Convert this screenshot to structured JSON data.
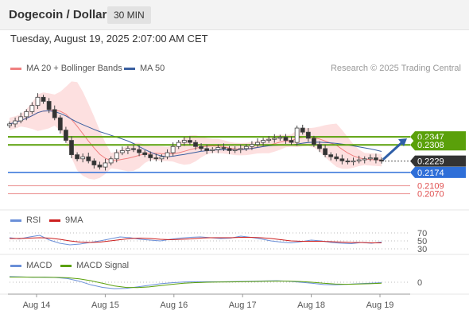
{
  "header": {
    "title": "Dogecoin / Dollar",
    "timeframe": "30 MIN"
  },
  "datetime": "Tuesday, August 19, 2025 2:07:00 AM CET",
  "legend": {
    "ma20": "MA 20 + Bollinger Bands",
    "ma50": "MA 50",
    "credit": "Research © 2025 Trading Central",
    "rsi": "RSI",
    "rsi9ma": "9MA",
    "macd": "MACD",
    "macd_signal": "MACD Signal"
  },
  "colors": {
    "ma20": "#f08080",
    "ma50": "#3a5fa0",
    "bollinger_fill": "#fde0e0",
    "resistance": "#5aa00a",
    "support": "#2f6fd8",
    "target": "#e05050",
    "rsi": "#6a8fd8",
    "rsi9ma": "#cc1f1f",
    "macd": "#6a8fd8",
    "macd_signal": "#5aa00a"
  },
  "chart_data": [
    {
      "type": "candlestick",
      "x_labels": [
        "Aug 14",
        "Aug 15",
        "Aug 16",
        "Aug 17",
        "Aug 18",
        "Aug 19"
      ],
      "ylim": [
        0.203,
        0.258
      ],
      "close": [
        0.241,
        0.2425,
        0.2445,
        0.247,
        0.25,
        0.254,
        0.252,
        0.248,
        0.244,
        0.238,
        0.233,
        0.226,
        0.224,
        0.225,
        0.223,
        0.221,
        0.22,
        0.222,
        0.224,
        0.227,
        0.228,
        0.229,
        0.2285,
        0.227,
        0.226,
        0.2245,
        0.224,
        0.225,
        0.227,
        0.23,
        0.232,
        0.233,
        0.232,
        0.23,
        0.229,
        0.228,
        0.2285,
        0.2295,
        0.229,
        0.228,
        0.2285,
        0.229,
        0.23,
        0.231,
        0.232,
        0.233,
        0.2335,
        0.234,
        0.2345,
        0.233,
        0.232,
        0.239,
        0.237,
        0.234,
        0.231,
        0.229,
        0.226,
        0.225,
        0.224,
        0.223,
        0.2225,
        0.223,
        0.2235,
        0.224,
        0.2245,
        0.2235,
        0.2229
      ],
      "resistance": [
        0.2347,
        0.2308
      ],
      "support": [
        0.2174
      ],
      "targets": [
        0.2109,
        0.207
      ],
      "price_labels": [
        "0.2347",
        "0.2308",
        "0.2229",
        "0.2174",
        "0.2109",
        "0.2070"
      ]
    },
    {
      "type": "line",
      "name": "RSI",
      "levels": [
        "70",
        "50",
        "30"
      ],
      "ylim": [
        20,
        80
      ],
      "series": [
        {
          "name": "RSI",
          "values": [
            58,
            55,
            60,
            64,
            52,
            44,
            40,
            42,
            46,
            50,
            55,
            60,
            58,
            54,
            52,
            50,
            54,
            57,
            59,
            60,
            58,
            56,
            57,
            62,
            59,
            55,
            50,
            47,
            45,
            48,
            52,
            50,
            46,
            44,
            43,
            46,
            44,
            47
          ]
        },
        {
          "name": "9MA",
          "values": [
            56,
            56,
            57,
            58,
            57,
            54,
            50,
            47,
            46,
            47,
            50,
            53,
            56,
            57,
            56,
            54,
            53,
            54,
            55,
            57,
            58,
            58,
            58,
            59,
            59,
            58,
            56,
            53,
            50,
            49,
            49,
            49,
            48,
            47,
            46,
            46,
            45,
            45
          ]
        }
      ]
    },
    {
      "type": "line",
      "name": "MACD",
      "levels": [
        "0"
      ],
      "ylim": [
        -1,
        1
      ],
      "series": [
        {
          "name": "MACD",
          "values": [
            0.55,
            0.52,
            0.48,
            0.5,
            0.45,
            0.35,
            0.1,
            -0.25,
            -0.5,
            -0.62,
            -0.6,
            -0.45,
            -0.3,
            -0.15,
            -0.05,
            0.02,
            0.05,
            0.05,
            0.04,
            0.06,
            0.08,
            0.1,
            0.12,
            0.15,
            0.1,
            0.0,
            -0.1,
            -0.22,
            -0.25,
            -0.2,
            -0.15,
            -0.1,
            -0.05
          ]
        },
        {
          "name": "MACD Signal",
          "values": [
            0.5,
            0.5,
            0.49,
            0.48,
            0.47,
            0.43,
            0.32,
            0.15,
            -0.1,
            -0.35,
            -0.5,
            -0.52,
            -0.45,
            -0.32,
            -0.2,
            -0.1,
            -0.04,
            0.0,
            0.02,
            0.03,
            0.05,
            0.07,
            0.09,
            0.11,
            0.11,
            0.07,
            0.0,
            -0.1,
            -0.17,
            -0.2,
            -0.18,
            -0.15,
            -0.1
          ]
        }
      ]
    }
  ]
}
